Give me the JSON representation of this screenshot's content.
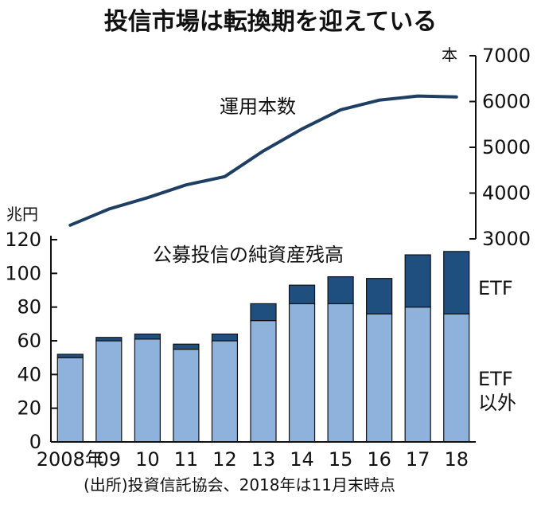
{
  "chart_data": {
    "type": "bar+line",
    "title": "投信市場は転換期を迎えている",
    "source": "(出所)投資信託協会、2018年は11月末時点",
    "categories": [
      "2008年",
      "09",
      "10",
      "11",
      "12",
      "13",
      "14",
      "15",
      "16",
      "17",
      "18"
    ],
    "bar_series": [
      {
        "name": "ETF以外",
        "name_lines": [
          "ETF",
          "以外"
        ],
        "color": "#8fb2dc",
        "values": [
          50,
          60,
          61,
          55,
          60,
          72,
          82,
          82,
          76,
          80,
          76
        ]
      },
      {
        "name": "ETF",
        "color": "#1f4f7f",
        "values": [
          2,
          2,
          3,
          3,
          4,
          10,
          11,
          16,
          21,
          31,
          37
        ]
      }
    ],
    "bar_axis": {
      "unit": "兆円",
      "ylim": [
        0,
        120
      ],
      "ticks": [
        0,
        20,
        40,
        60,
        80,
        100,
        120
      ]
    },
    "bar_label": "公募投信の純資産残高",
    "line_series": {
      "name": "運用本数",
      "color": "#1e3f63",
      "values": [
        3300,
        3650,
        3900,
        4180,
        4360,
        4920,
        5400,
        5820,
        6030,
        6120,
        6100
      ]
    },
    "line_axis": {
      "unit": "本",
      "ylim": [
        3000,
        7000
      ],
      "ticks": [
        3000,
        4000,
        5000,
        6000,
        7000
      ]
    }
  }
}
